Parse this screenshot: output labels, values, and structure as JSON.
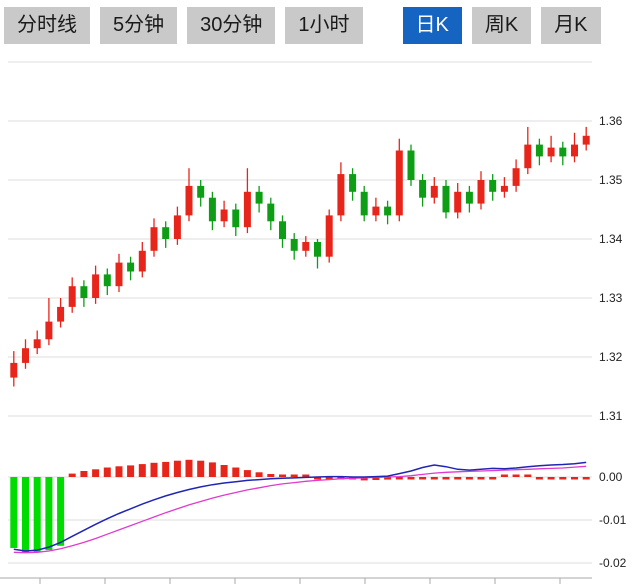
{
  "toolbar": {
    "tabs": [
      {
        "label": "分时线",
        "active": false
      },
      {
        "label": "5分钟",
        "active": false
      },
      {
        "label": "30分钟",
        "active": false
      },
      {
        "label": "1小时",
        "active": false
      },
      {
        "label": "日K",
        "active": true
      },
      {
        "label": "周K",
        "active": false
      },
      {
        "label": "月K",
        "active": false
      }
    ]
  },
  "chart_data": {
    "type": "candlestick",
    "panes": [
      "price",
      "macd"
    ],
    "price_axis": {
      "labels": [
        "1.36",
        "1.35",
        "1.34",
        "1.33",
        "1.32",
        "1.31"
      ],
      "range": [
        1.305,
        1.37
      ]
    },
    "macd_axis": {
      "labels": [
        "0.00",
        "-0.01",
        "-0.02"
      ],
      "range": [
        -0.02,
        0.005
      ]
    },
    "colors": {
      "up": "#e8251a",
      "down": "#0d9e16",
      "macd_up": "#e8251a",
      "macd_down": "#00dc00",
      "dif": "#2026b4",
      "dea": "#e03ad0",
      "grid": "#dcdcdc",
      "axis_line": "#aaaaaa",
      "axis_text": "#222222",
      "tab_bg": "#c9c9c9",
      "tab_active_bg": "#1564c2"
    },
    "candles": [
      [
        1.3165,
        1.321,
        1.315,
        1.319
      ],
      [
        1.319,
        1.323,
        1.318,
        1.3215
      ],
      [
        1.3215,
        1.3245,
        1.3205,
        1.323
      ],
      [
        1.323,
        1.33,
        1.322,
        1.326
      ],
      [
        1.326,
        1.33,
        1.325,
        1.3285
      ],
      [
        1.3285,
        1.3335,
        1.3275,
        1.332
      ],
      [
        1.332,
        1.333,
        1.3285,
        1.33
      ],
      [
        1.33,
        1.3355,
        1.329,
        1.334
      ],
      [
        1.334,
        1.335,
        1.3305,
        1.332
      ],
      [
        1.332,
        1.3375,
        1.331,
        1.336
      ],
      [
        1.336,
        1.337,
        1.333,
        1.3345
      ],
      [
        1.3345,
        1.3395,
        1.3335,
        1.338
      ],
      [
        1.338,
        1.3435,
        1.337,
        1.342
      ],
      [
        1.342,
        1.343,
        1.3385,
        1.34
      ],
      [
        1.34,
        1.3455,
        1.339,
        1.344
      ],
      [
        1.344,
        1.352,
        1.343,
        1.349
      ],
      [
        1.349,
        1.35,
        1.3455,
        1.347
      ],
      [
        1.347,
        1.348,
        1.3415,
        1.343
      ],
      [
        1.343,
        1.3465,
        1.342,
        1.345
      ],
      [
        1.345,
        1.346,
        1.3405,
        1.342
      ],
      [
        1.342,
        1.352,
        1.341,
        1.348
      ],
      [
        1.348,
        1.349,
        1.3445,
        1.346
      ],
      [
        1.346,
        1.347,
        1.3415,
        1.343
      ],
      [
        1.343,
        1.344,
        1.3385,
        1.34
      ],
      [
        1.34,
        1.341,
        1.3365,
        1.338
      ],
      [
        1.338,
        1.3405,
        1.337,
        1.3395
      ],
      [
        1.3395,
        1.34,
        1.335,
        1.337
      ],
      [
        1.337,
        1.345,
        1.336,
        1.344
      ],
      [
        1.344,
        1.353,
        1.343,
        1.351
      ],
      [
        1.351,
        1.352,
        1.3465,
        1.348
      ],
      [
        1.348,
        1.349,
        1.343,
        1.344
      ],
      [
        1.344,
        1.347,
        1.343,
        1.3455
      ],
      [
        1.3455,
        1.3465,
        1.3425,
        1.344
      ],
      [
        1.344,
        1.357,
        1.343,
        1.355
      ],
      [
        1.355,
        1.356,
        1.349,
        1.35
      ],
      [
        1.35,
        1.351,
        1.3455,
        1.347
      ],
      [
        1.347,
        1.3505,
        1.346,
        1.349
      ],
      [
        1.349,
        1.35,
        1.3435,
        1.3445
      ],
      [
        1.3445,
        1.3495,
        1.3435,
        1.348
      ],
      [
        1.348,
        1.349,
        1.3445,
        1.346
      ],
      [
        1.346,
        1.3515,
        1.345,
        1.35
      ],
      [
        1.35,
        1.351,
        1.3465,
        1.348
      ],
      [
        1.348,
        1.3505,
        1.347,
        1.349
      ],
      [
        1.349,
        1.3535,
        1.348,
        1.352
      ],
      [
        1.352,
        1.359,
        1.351,
        1.356
      ],
      [
        1.356,
        1.357,
        1.3525,
        1.354
      ],
      [
        1.354,
        1.3575,
        1.353,
        1.3555
      ],
      [
        1.3555,
        1.3565,
        1.3525,
        1.354
      ],
      [
        1.354,
        1.358,
        1.353,
        1.356
      ],
      [
        1.356,
        1.359,
        1.355,
        1.3575
      ]
    ],
    "macd": {
      "histogram": [
        -0.0165,
        -0.0175,
        -0.0175,
        -0.017,
        -0.016,
        0.0008,
        0.0014,
        0.0018,
        0.0022,
        0.0025,
        0.0027,
        0.003,
        0.0033,
        0.0035,
        0.0038,
        0.004,
        0.0038,
        0.0034,
        0.0028,
        0.0022,
        0.0016,
        0.0011,
        0.0007,
        0.0004,
        0.0002,
        0.0001,
        -0.0002,
        -0.0003,
        -0.0004,
        -0.0005,
        -0.0008,
        -0.0007,
        -0.0006,
        -0.0004,
        -0.0004,
        -0.0004,
        -0.0003,
        -0.0004,
        -0.0004,
        -0.0003,
        -0.0003,
        -0.0002,
        0.0001,
        0.0002,
        0.0001,
        -0.0003,
        -0.0004,
        -0.0004,
        -0.0004,
        -0.0003
      ],
      "dif": [
        -0.0168,
        -0.0172,
        -0.017,
        -0.0163,
        -0.0152,
        -0.0138,
        -0.0124,
        -0.011,
        -0.0097,
        -0.0085,
        -0.0074,
        -0.0063,
        -0.0053,
        -0.0044,
        -0.0036,
        -0.0029,
        -0.0023,
        -0.0018,
        -0.0014,
        -0.0011,
        -0.0008,
        -0.0006,
        -0.0004,
        -0.0003,
        -0.0002,
        -0.0001,
        0.0,
        0.0001,
        0.0001,
        0.0,
        0.0,
        0.0001,
        0.0002,
        0.0008,
        0.0014,
        0.0022,
        0.0028,
        0.0024,
        0.0018,
        0.0016,
        0.0018,
        0.002,
        0.0019,
        0.0021,
        0.0024,
        0.0026,
        0.0028,
        0.0029,
        0.0031,
        0.0034
      ],
      "dea": [
        -0.0175,
        -0.0176,
        -0.0175,
        -0.0172,
        -0.0167,
        -0.016,
        -0.0152,
        -0.0143,
        -0.0133,
        -0.0123,
        -0.0113,
        -0.0103,
        -0.0093,
        -0.0083,
        -0.0074,
        -0.0065,
        -0.0057,
        -0.0049,
        -0.0042,
        -0.0036,
        -0.003,
        -0.0025,
        -0.002,
        -0.0016,
        -0.0013,
        -0.001,
        -0.0008,
        -0.0006,
        -0.0004,
        -0.0003,
        -0.0002,
        -0.0001,
        0.0,
        0.0001,
        0.0003,
        0.0006,
        0.0009,
        0.0011,
        0.0012,
        0.0013,
        0.0014,
        0.0015,
        0.0016,
        0.0017,
        0.0018,
        0.0019,
        0.002,
        0.0021,
        0.0023,
        0.0025
      ]
    }
  }
}
